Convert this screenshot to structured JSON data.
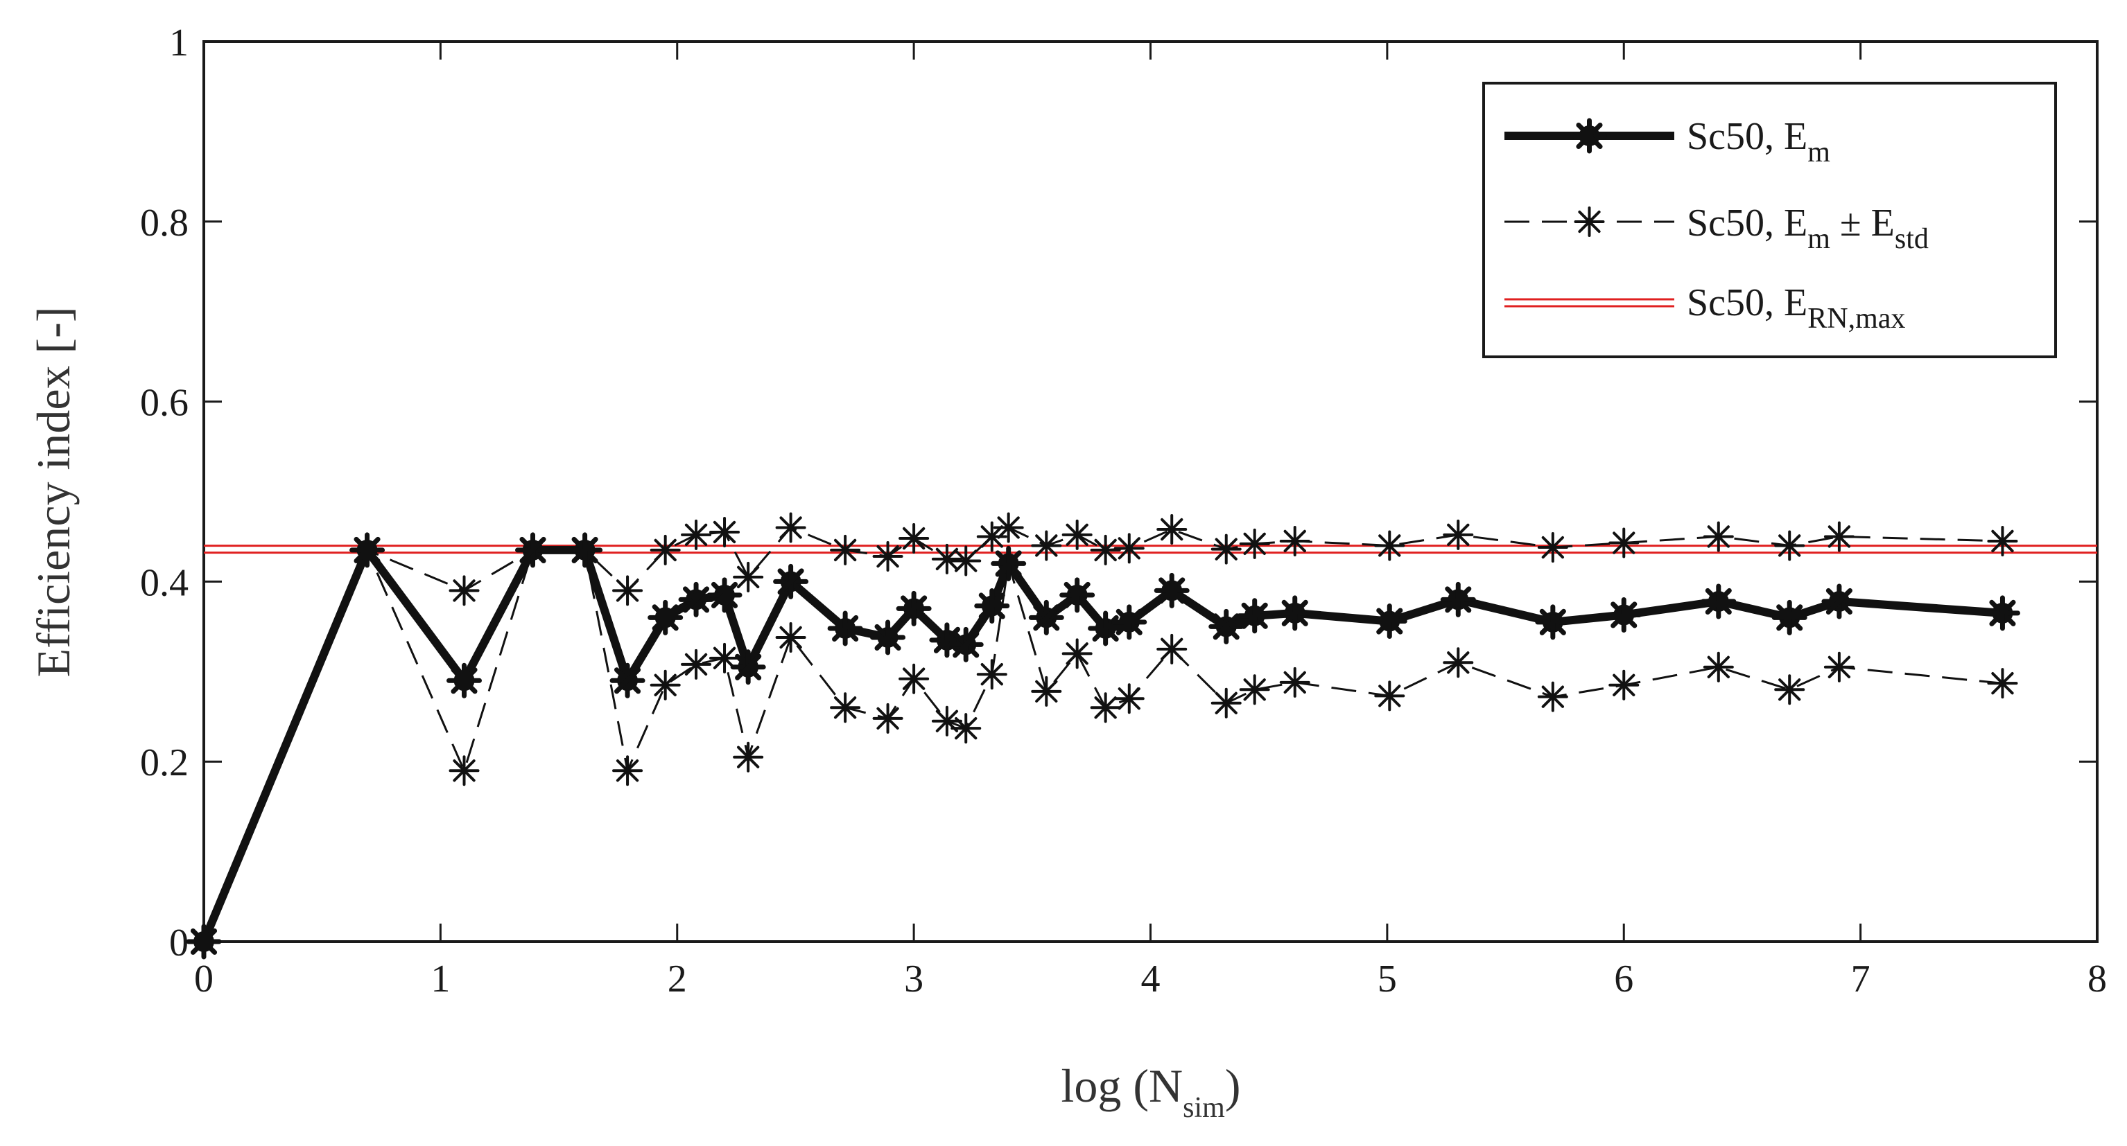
{
  "chart_data": {
    "type": "line",
    "xlabel": "log (N",
    "xlabel_sub": "sim",
    "xlabel_close": ")",
    "ylabel": "Efficiency index [-]",
    "xlim": [
      0,
      8
    ],
    "ylim": [
      0,
      1
    ],
    "x_ticks": [
      0,
      1,
      2,
      3,
      4,
      5,
      6,
      7,
      8
    ],
    "y_ticks": [
      0,
      0.2,
      0.4,
      0.6,
      0.8,
      1
    ],
    "x_tick_labels": [
      "0",
      "1",
      "2",
      "3",
      "4",
      "5",
      "6",
      "7",
      "8"
    ],
    "y_tick_labels": [
      "0",
      "0.2",
      "0.4",
      "0.6",
      "0.8",
      "1"
    ],
    "x": [
      0,
      0.69,
      1.1,
      1.39,
      1.61,
      1.79,
      1.95,
      2.08,
      2.2,
      2.3,
      2.48,
      2.71,
      2.89,
      3.0,
      3.14,
      3.22,
      3.33,
      3.4,
      3.56,
      3.69,
      3.81,
      3.91,
      4.09,
      4.32,
      4.44,
      4.61,
      5.01,
      5.3,
      5.7,
      6.0,
      6.4,
      6.7,
      6.91,
      7.6
    ],
    "series": [
      {
        "name": "Sc50, E_m",
        "style": "solid-thick-marker",
        "values": [
          0,
          0.435,
          0.29,
          0.435,
          0.435,
          0.29,
          0.36,
          0.38,
          0.385,
          0.305,
          0.4,
          0.348,
          0.338,
          0.37,
          0.335,
          0.33,
          0.373,
          0.42,
          0.36,
          0.385,
          0.348,
          0.355,
          0.39,
          0.35,
          0.362,
          0.365,
          0.356,
          0.38,
          0.355,
          0.363,
          0.378,
          0.36,
          0.378,
          0.365
        ]
      },
      {
        "name": "Sc50, E_m + E_std",
        "style": "dashed-star",
        "values": [
          0,
          0.435,
          0.39,
          0.435,
          0.435,
          0.39,
          0.435,
          0.452,
          0.455,
          0.405,
          0.46,
          0.435,
          0.428,
          0.448,
          0.425,
          0.423,
          0.45,
          0.46,
          0.44,
          0.452,
          0.435,
          0.437,
          0.458,
          0.436,
          0.442,
          0.445,
          0.44,
          0.452,
          0.438,
          0.443,
          0.45,
          0.44,
          0.45,
          0.445
        ]
      },
      {
        "name": "Sc50, E_m - E_std",
        "style": "dashed-star",
        "values": [
          0,
          0.435,
          0.19,
          0.435,
          0.435,
          0.19,
          0.285,
          0.308,
          0.315,
          0.205,
          0.338,
          0.26,
          0.248,
          0.292,
          0.245,
          0.237,
          0.297,
          0.42,
          0.278,
          0.32,
          0.26,
          0.27,
          0.325,
          0.265,
          0.28,
          0.288,
          0.273,
          0.31,
          0.272,
          0.285,
          0.305,
          0.28,
          0.305,
          0.287
        ]
      }
    ],
    "reference_line": {
      "name": "Sc50, E_RN,max",
      "y": 0.436,
      "color": "#e02020"
    },
    "legend": {
      "position": "top-right",
      "entries": [
        {
          "label": "Sc50, E",
          "sub": "m",
          "extra": "",
          "extra_sub": ""
        },
        {
          "label": "Sc50, E",
          "sub": "m",
          "extra": " ± E",
          "extra_sub": "std"
        },
        {
          "label": "Sc50, E",
          "sub": "RN,max",
          "extra": "",
          "extra_sub": ""
        }
      ]
    }
  }
}
